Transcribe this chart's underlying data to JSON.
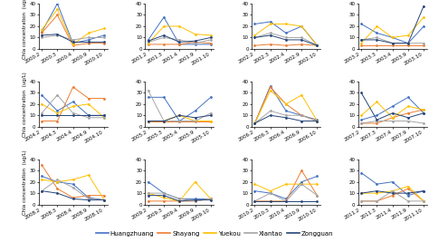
{
  "months": [
    "2",
    "3",
    "4",
    "9",
    "10"
  ],
  "stations": [
    "Huangzhuang",
    "Shayang",
    "Yuekou",
    "Xiantao",
    "Zongguan"
  ],
  "colors": [
    "#4472C4",
    "#ED7D31",
    "#FFC000",
    "#A5A5A5",
    "#264478"
  ],
  "ylim": [
    0,
    40
  ],
  "yticks": [
    0,
    10,
    20,
    30,
    40
  ],
  "data": {
    "2000": {
      "Huangzhuang": [
        15,
        40,
        5,
        8,
        12
      ],
      "Shayang": [
        14,
        30,
        3,
        5,
        5
      ],
      "Yuekou": [
        17,
        35,
        4,
        14,
        18
      ],
      "Xiantao": [
        10,
        12,
        8,
        10,
        10
      ],
      "Zongguan": [
        12,
        13,
        6,
        6,
        6
      ]
    },
    "2001": {
      "Huangzhuang": [
        8,
        28,
        4,
        4,
        4
      ],
      "Shayang": [
        4,
        4,
        4,
        6,
        5
      ],
      "Yuekou": [
        5,
        20,
        20,
        13,
        12
      ],
      "Xiantao": [
        6,
        10,
        8,
        5,
        8
      ],
      "Zongguan": [
        7,
        12,
        6,
        7,
        10
      ]
    },
    "2002": {
      "Huangzhuang": [
        22,
        24,
        14,
        20,
        3
      ],
      "Shayang": [
        3,
        4,
        3,
        4,
        3
      ],
      "Yuekou": [
        12,
        22,
        22,
        20,
        3
      ],
      "Xiantao": [
        10,
        14,
        10,
        10,
        3
      ],
      "Zongguan": [
        10,
        12,
        8,
        8,
        3
      ]
    },
    "2003": {
      "Huangzhuang": [
        22,
        14,
        10,
        5,
        20
      ],
      "Shayang": [
        3,
        3,
        3,
        3,
        3
      ],
      "Yuekou": [
        5,
        20,
        10,
        12,
        28
      ],
      "Xiantao": [
        8,
        10,
        5,
        5,
        5
      ],
      "Zongguan": [
        8,
        8,
        5,
        5,
        38
      ]
    },
    "2004": {
      "Huangzhuang": [
        28,
        14,
        22,
        10,
        10
      ],
      "Shayang": [
        5,
        5,
        35,
        25,
        25
      ],
      "Yuekou": [
        20,
        12,
        18,
        20,
        8
      ],
      "Xiantao": [
        12,
        28,
        12,
        8,
        8
      ],
      "Zongguan": [
        10,
        10,
        10,
        10,
        10
      ]
    },
    "2005": {
      "Huangzhuang": [
        26,
        26,
        5,
        14,
        26
      ],
      "Shayang": [
        5,
        5,
        5,
        5,
        5
      ],
      "Yuekou": [
        5,
        5,
        10,
        5,
        5
      ],
      "Xiantao": [
        32,
        5,
        5,
        5,
        12
      ],
      "Zongguan": [
        5,
        5,
        10,
        8,
        10
      ]
    },
    "2006": {
      "Huangzhuang": [
        3,
        36,
        14,
        10,
        6
      ],
      "Shayang": [
        3,
        35,
        20,
        10,
        5
      ],
      "Yuekou": [
        3,
        32,
        20,
        28,
        5
      ],
      "Xiantao": [
        3,
        14,
        10,
        10,
        5
      ],
      "Zongguan": [
        3,
        10,
        8,
        5,
        5
      ]
    },
    "2007": {
      "Huangzhuang": [
        6,
        10,
        18,
        26,
        12
      ],
      "Shayang": [
        3,
        3,
        8,
        12,
        15
      ],
      "Yuekou": [
        10,
        22,
        8,
        18,
        15
      ],
      "Xiantao": [
        3,
        5,
        5,
        5,
        3
      ],
      "Zongguan": [
        30,
        6,
        12,
        8,
        12
      ]
    },
    "2008": {
      "Huangzhuang": [
        25,
        20,
        18,
        6,
        4
      ],
      "Shayang": [
        35,
        14,
        6,
        8,
        8
      ],
      "Yuekou": [
        22,
        20,
        22,
        26,
        4
      ],
      "Xiantao": [
        12,
        22,
        15,
        5,
        4
      ],
      "Zongguan": [
        12,
        10,
        5,
        4,
        4
      ]
    },
    "2009": {
      "Huangzhuang": [
        20,
        10,
        5,
        5,
        5
      ],
      "Shayang": [
        3,
        3,
        3,
        3,
        5
      ],
      "Yuekou": [
        10,
        6,
        3,
        20,
        5
      ],
      "Xiantao": [
        10,
        10,
        5,
        3,
        5
      ],
      "Zongguan": [
        8,
        8,
        3,
        4,
        4
      ]
    },
    "2010": {
      "Huangzhuang": [
        12,
        10,
        5,
        20,
        25
      ],
      "Shayang": [
        3,
        3,
        3,
        30,
        8
      ],
      "Yuekou": [
        18,
        12,
        18,
        18,
        18
      ],
      "Xiantao": [
        3,
        10,
        3,
        18,
        8
      ],
      "Zongguan": [
        3,
        3,
        3,
        3,
        3
      ]
    },
    "2011": {
      "Huangzhuang": [
        28,
        18,
        20,
        8,
        12
      ],
      "Shayang": [
        3,
        3,
        8,
        14,
        3
      ],
      "Yuekou": [
        10,
        10,
        12,
        16,
        3
      ],
      "Xiantao": [
        3,
        3,
        12,
        3,
        3
      ],
      "Zongguan": [
        10,
        12,
        10,
        10,
        12
      ]
    }
  },
  "ylabel": "Chla concentration  (ug/L)",
  "legend_fontsize": 5,
  "tick_fontsize": 4,
  "label_fontsize": 4,
  "row_years": [
    [
      "2000",
      "2001",
      "2002",
      "2003"
    ],
    [
      "2004",
      "2005",
      "2006",
      "2007"
    ],
    [
      "2008",
      "2009",
      "2010",
      "2011"
    ]
  ]
}
